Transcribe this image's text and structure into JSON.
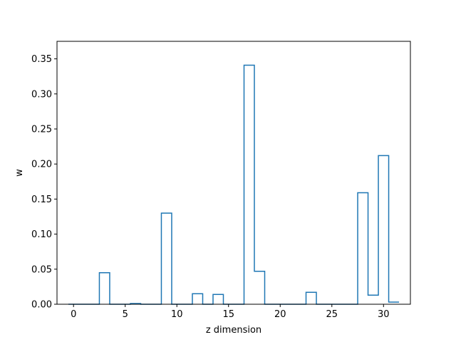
{
  "chart_data": {
    "type": "step",
    "xlabel": "z dimension",
    "ylabel": "w",
    "xlim": [
      -1.6,
      32.6
    ],
    "ylim": [
      0,
      0.375
    ],
    "xticks": [
      0,
      5,
      10,
      15,
      20,
      25,
      30
    ],
    "xtick_labels": [
      "0",
      "5",
      "10",
      "15",
      "20",
      "25",
      "30"
    ],
    "yticks": [
      0.0,
      0.05,
      0.1,
      0.15,
      0.2,
      0.25,
      0.3,
      0.35
    ],
    "ytick_labels": [
      "0.00",
      "0.05",
      "0.10",
      "0.15",
      "0.20",
      "0.25",
      "0.30",
      "0.35"
    ],
    "grid": false,
    "series": [
      {
        "color": "#1f77b4",
        "x": [
          0,
          1,
          2,
          3,
          4,
          5,
          6,
          7,
          8,
          9,
          10,
          11,
          12,
          13,
          14,
          15,
          16,
          17,
          18,
          19,
          20,
          21,
          22,
          23,
          24,
          25,
          26,
          27,
          28,
          29,
          30,
          31
        ],
        "values": [
          0,
          0,
          0,
          0.045,
          0,
          0,
          0.001,
          0,
          0,
          0.13,
          0,
          0,
          0.015,
          0,
          0.014,
          0,
          0,
          0.341,
          0.047,
          0,
          0,
          0,
          0,
          0.017,
          0,
          0,
          0,
          0,
          0.159,
          0.013,
          0.212,
          0.003
        ]
      }
    ]
  }
}
